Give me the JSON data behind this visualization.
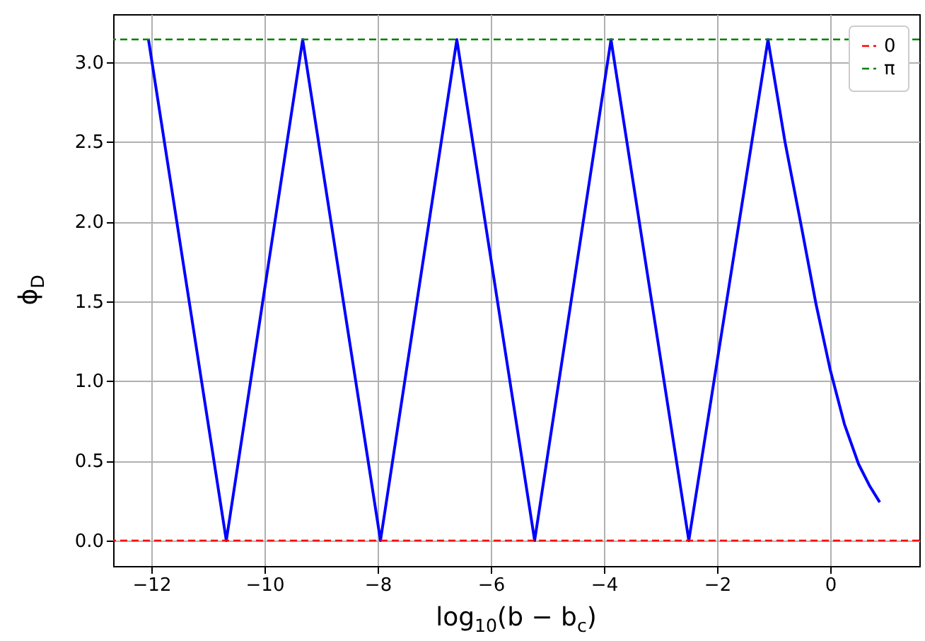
{
  "chart_data": {
    "type": "line",
    "xlabel": "log$_{10}$(b − b$_{c}$)",
    "ylabel": "ϕ$_{D}$",
    "series": [
      {
        "color": "#0000ff",
        "line_style": "solid",
        "x": [
          -12.05,
          -10.675,
          -9.325,
          -7.95,
          -6.6,
          -5.225,
          -3.875,
          -2.5,
          -1.1,
          -0.8,
          -0.5,
          -0.25,
          0,
          0.25,
          0.5,
          0.7,
          0.875
        ],
        "values": [
          3.14,
          0,
          3.14,
          0,
          3.14,
          0,
          3.14,
          0,
          3.14,
          2.5,
          1.95,
          1.48,
          1.07,
          0.73,
          0.48,
          0.34,
          0.24
        ]
      }
    ],
    "xlim": [
      -12.675,
      1.575
    ],
    "xticks": [
      -12,
      -10,
      -8,
      -6,
      -4,
      -2,
      0
    ],
    "ylim": [
      -0.16,
      3.3
    ],
    "yticks": [
      {
        "value": 0,
        "label": "0.0"
      },
      {
        "value": 0.5,
        "label": "0.5"
      },
      {
        "value": 1,
        "label": "1.0"
      },
      {
        "value": 1.5,
        "label": "1.5"
      },
      {
        "value": 2,
        "label": "2.0"
      },
      {
        "value": 2.5,
        "label": "2.5"
      },
      {
        "value": 3,
        "label": "3.0"
      }
    ],
    "ref_lines": [
      {
        "axis": "y",
        "value": 0,
        "label": "0",
        "color": "#ff0000",
        "line_style": "dashed"
      },
      {
        "axis": "y",
        "value": 3.1416,
        "label": "π",
        "color": "#008000",
        "line_style": "dashed"
      }
    ],
    "grid": true,
    "legend": "top right"
  }
}
